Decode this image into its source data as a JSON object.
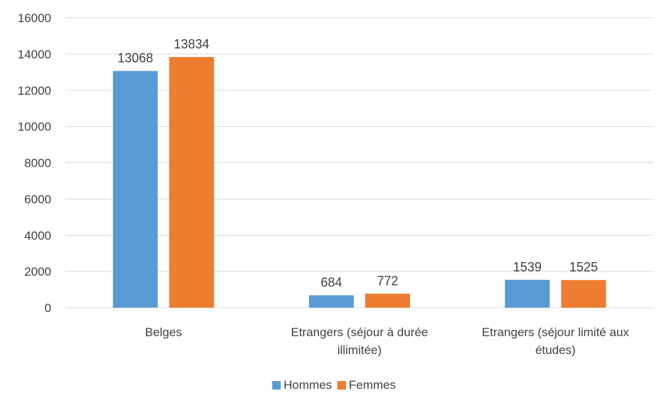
{
  "chart_data": {
    "type": "bar",
    "categories": [
      "Belges",
      "Etrangers (séjour à durée illimitée)",
      "Etrangers (séjour limité aux études)"
    ],
    "series": [
      {
        "name": "Hommes",
        "values": [
          13068,
          684,
          1539
        ],
        "color": "#5B9BD5"
      },
      {
        "name": "Femmes",
        "values": [
          13834,
          772,
          1525
        ],
        "color": "#ED7D31"
      }
    ],
    "yticks": [
      0,
      2000,
      4000,
      6000,
      8000,
      10000,
      12000,
      14000,
      16000
    ],
    "ylim": [
      0,
      16000
    ],
    "grid": true,
    "legend_position": "bottom",
    "data_labels": true,
    "title": "",
    "xlabel": "",
    "ylabel": ""
  }
}
